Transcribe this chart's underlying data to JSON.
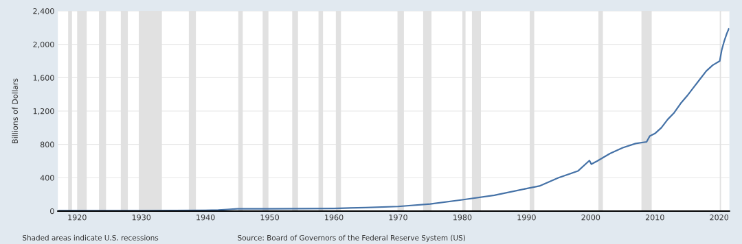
{
  "chart_data": {
    "type": "line",
    "ylabel": "Billions of Dollars",
    "annotations": [
      "Shaded areas indicate U.S. recessions",
      "Source: Board of Governors of the Federal Reserve System (US)"
    ],
    "series": [
      {
        "color": "#4572a7",
        "x": [
          1917.2,
          1920,
          1925,
          1930,
          1935,
          1940,
          1942,
          1943.5,
          1945,
          1950,
          1955,
          1960,
          1965,
          1970,
          1975,
          1980,
          1985,
          1990,
          1992,
          1995,
          1998,
          1999.8,
          2000.1,
          2001,
          2003,
          2005,
          2007,
          2008.7,
          2009.2,
          2010,
          2011,
          2012,
          2013,
          2014,
          2015,
          2016,
          2017,
          2018,
          2019,
          2020.1,
          2020.4,
          2020.8,
          2021.2,
          2021.5
        ],
        "values": [
          4,
          5,
          5,
          5,
          6,
          8,
          12,
          20,
          27,
          27,
          30,
          32,
          42,
          55,
          85,
          135,
          190,
          270,
          300,
          400,
          480,
          606,
          562,
          600,
          690,
          760,
          810,
          830,
          900,
          930,
          1000,
          1100,
          1180,
          1290,
          1380,
          1480,
          1580,
          1680,
          1750,
          1800,
          1930,
          2040,
          2130,
          2184
        ]
      }
    ],
    "xlim": [
      1917,
      2021.6
    ],
    "xticks": [
      1920,
      1930,
      1940,
      1950,
      1960,
      1970,
      1980,
      1990,
      2000,
      2010,
      2020
    ],
    "ylim": [
      0,
      2400
    ],
    "yticks": [
      0,
      {
        "value": 400,
        "label": "400"
      },
      {
        "value": 800,
        "label": "800"
      },
      {
        "value": 1200,
        "label": "1,200"
      },
      {
        "value": 1600,
        "label": "1,600"
      },
      {
        "value": 2000,
        "label": "2,000"
      },
      {
        "value": 2400,
        "label": "2,400"
      }
    ],
    "grid": "y",
    "bands": [
      {
        "axis": "x",
        "from": 1918.6,
        "to": 1919.2,
        "color": "#e1e1e1"
      },
      {
        "axis": "x",
        "from": 1920.0,
        "to": 1921.5,
        "color": "#e1e1e1"
      },
      {
        "axis": "x",
        "from": 1923.4,
        "to": 1924.5,
        "color": "#e1e1e1"
      },
      {
        "axis": "x",
        "from": 1926.8,
        "to": 1927.9,
        "color": "#e1e1e1"
      },
      {
        "axis": "x",
        "from": 1929.6,
        "to": 1933.2,
        "color": "#e1e1e1"
      },
      {
        "axis": "x",
        "from": 1937.4,
        "to": 1938.5,
        "color": "#e1e1e1"
      },
      {
        "axis": "x",
        "from": 1945.1,
        "to": 1945.8,
        "color": "#e1e1e1"
      },
      {
        "axis": "x",
        "from": 1948.9,
        "to": 1949.8,
        "color": "#e1e1e1"
      },
      {
        "axis": "x",
        "from": 1953.5,
        "to": 1954.4,
        "color": "#e1e1e1"
      },
      {
        "axis": "x",
        "from": 1957.6,
        "to": 1958.3,
        "color": "#e1e1e1"
      },
      {
        "axis": "x",
        "from": 1960.3,
        "to": 1961.1,
        "color": "#e1e1e1"
      },
      {
        "axis": "x",
        "from": 1969.9,
        "to": 1970.9,
        "color": "#e1e1e1"
      },
      {
        "axis": "x",
        "from": 1973.9,
        "to": 1975.2,
        "color": "#e1e1e1"
      },
      {
        "axis": "x",
        "from": 1980.0,
        "to": 1980.5,
        "color": "#e1e1e1"
      },
      {
        "axis": "x",
        "from": 1981.5,
        "to": 1982.9,
        "color": "#e1e1e1"
      },
      {
        "axis": "x",
        "from": 1990.5,
        "to": 1991.2,
        "color": "#e1e1e1"
      },
      {
        "axis": "x",
        "from": 2001.2,
        "to": 2001.9,
        "color": "#e1e1e1"
      },
      {
        "axis": "x",
        "from": 2007.9,
        "to": 2009.5,
        "color": "#e1e1e1"
      },
      {
        "axis": "x",
        "from": 2020.1,
        "to": 2020.3,
        "color": "#e1e1e1"
      }
    ]
  }
}
